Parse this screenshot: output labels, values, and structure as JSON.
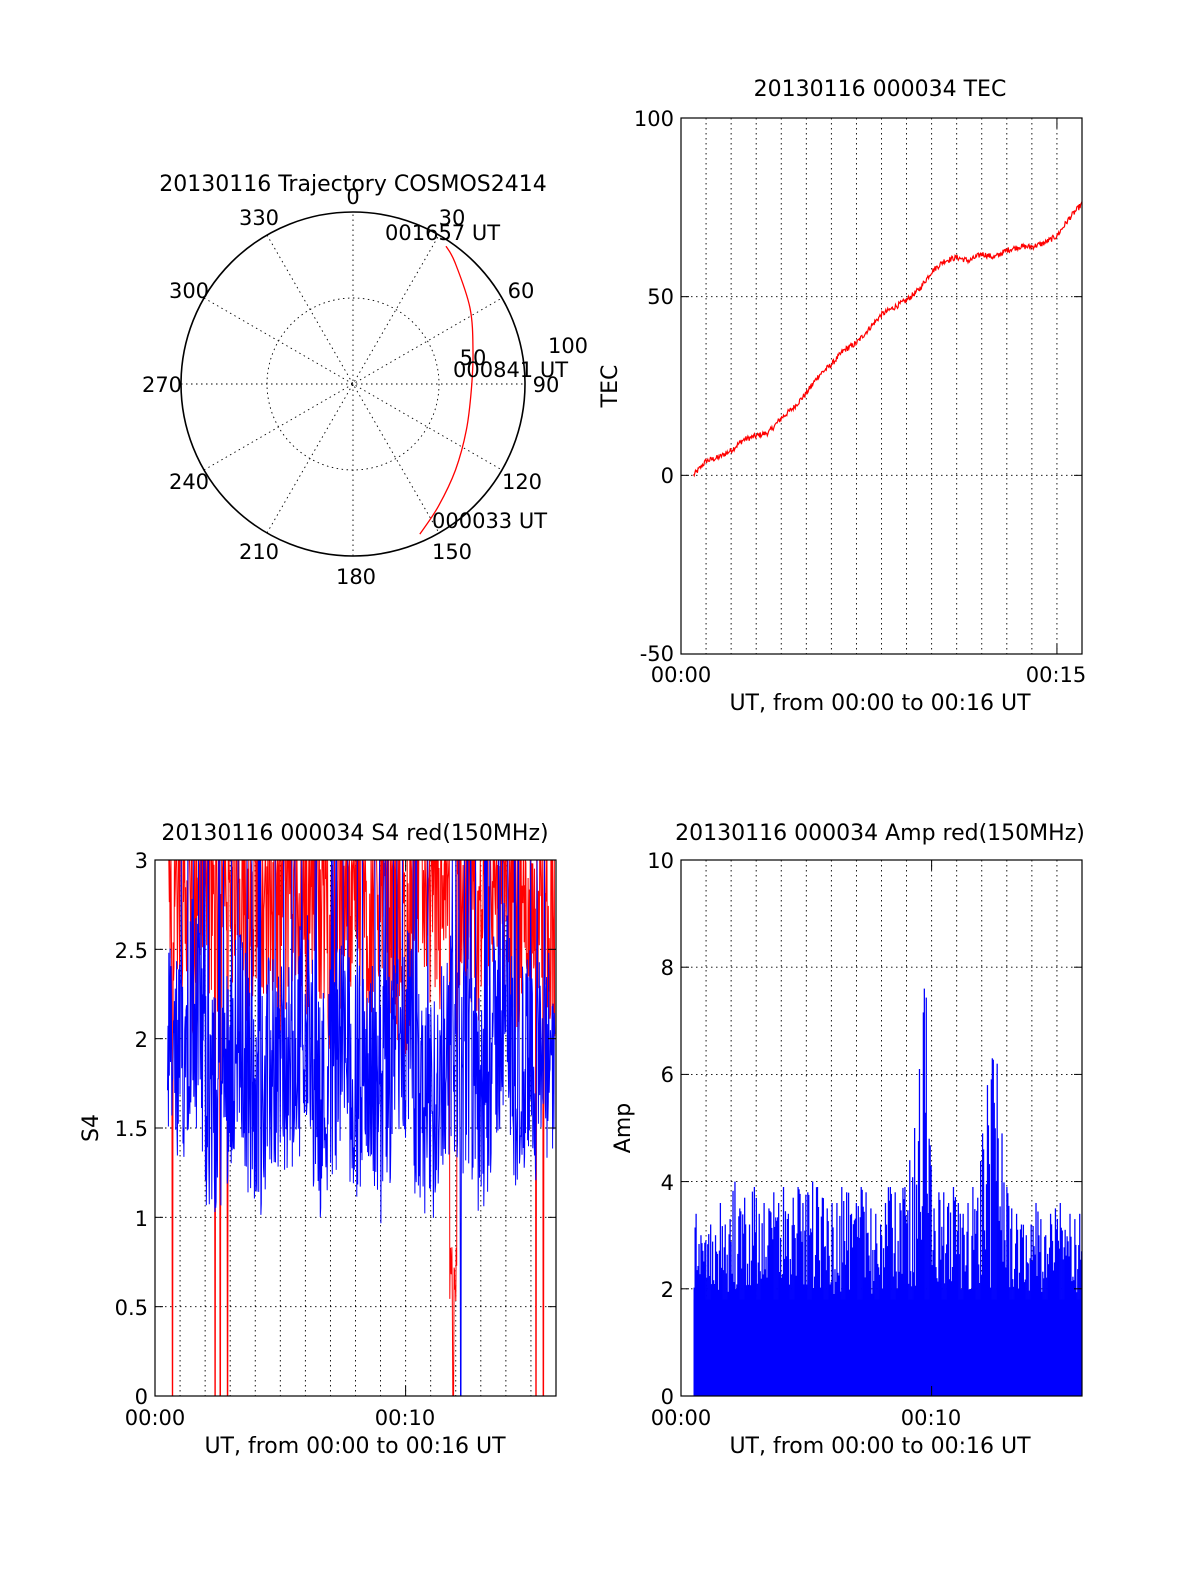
{
  "chart_data": [
    {
      "type": "polar",
      "title": "20130116 Trajectory COSMOS2414",
      "azimuth_labels": [
        "0",
        "30",
        "60",
        "90",
        "120",
        "150",
        "180",
        "210",
        "240",
        "270",
        "300",
        "330"
      ],
      "radial_labels": [
        "50",
        "100"
      ],
      "track_labels": {
        "end": "001657 UT",
        "middle": "000841 UT",
        "start": "000033 UT"
      },
      "series": [
        {
          "color": "#ff0000",
          "points": [
            {
              "az": 156,
              "el": 4
            },
            {
              "az": 145,
              "el": 12
            },
            {
              "az": 130,
              "el": 20
            },
            {
              "az": 112,
              "el": 26
            },
            {
              "az": 93,
              "el": 28
            },
            {
              "az": 75,
              "el": 25
            },
            {
              "az": 57,
              "el": 17
            },
            {
              "az": 40,
              "el": 7
            },
            {
              "az": 34,
              "el": 3
            }
          ]
        }
      ],
      "grid": true
    },
    {
      "type": "line",
      "title": "20130116 000034 TEC",
      "xlabel": "UT, from 00:00 to 00:16 UT",
      "ylabel": "TEC",
      "x_tick_labels": [
        "00:00",
        "00:15"
      ],
      "y_tick_labels": [
        "-50",
        "0",
        "50",
        "100"
      ],
      "xlim_minutes": [
        0,
        16
      ],
      "ylim": [
        -50,
        100
      ],
      "grid": true,
      "series": [
        {
          "color": "#ff0000",
          "x_minutes": [
            0.5,
            1.0,
            1.5,
            2.0,
            2.5,
            3.0,
            3.5,
            4.0,
            4.5,
            5.0,
            5.5,
            6.0,
            6.5,
            7.0,
            7.5,
            8.0,
            8.5,
            9.0,
            9.5,
            10.0,
            10.5,
            11.0,
            11.5,
            12.0,
            12.5,
            13.0,
            13.5,
            14.0,
            14.5,
            15.0,
            15.5,
            16.0
          ],
          "values": [
            0,
            4,
            5,
            7,
            10,
            11,
            12,
            16,
            19,
            23,
            28,
            31,
            35,
            37,
            41,
            45,
            47,
            49,
            52,
            57,
            60,
            61,
            60,
            62,
            61,
            63,
            64,
            64,
            65,
            67,
            72,
            76
          ]
        }
      ]
    },
    {
      "type": "line",
      "title": "20130116 000034 S4 red(150MHz)",
      "xlabel": "UT, from 00:00 to 00:16 UT",
      "ylabel": "S4",
      "x_tick_labels": [
        "00:00",
        "00:10"
      ],
      "y_tick_labels": [
        "0",
        "0.5",
        "1",
        "1.5",
        "2",
        "2.5",
        "3"
      ],
      "xlim_minutes": [
        0,
        16
      ],
      "ylim": [
        0,
        3
      ],
      "grid": true,
      "series": [
        {
          "color": "#ff0000",
          "values": [
            2.9,
            3.0,
            2.7,
            3.0,
            2.8,
            3.0,
            2.6,
            3.0,
            2.9,
            2.7,
            3.0,
            2.8,
            3.0,
            2.6,
            2.9,
            3.0,
            2.7,
            3.0,
            2.8,
            2.5,
            3.0,
            2.9,
            2.7,
            3.0,
            2.8,
            2.6,
            3.0,
            2.9,
            2.7,
            2.8,
            3.0,
            2.6
          ],
          "dropouts_minutes": [
            0.7,
            2.4,
            2.6,
            2.9,
            11.9,
            15.2,
            15.5
          ],
          "dip_minutes": 11.9,
          "dip_min": 0.45
        },
        {
          "color": "#0000ff",
          "values": [
            1.9,
            1.8,
            2.3,
            1.7,
            1.6,
            1.9,
            2.0,
            1.5,
            1.8,
            1.9,
            1.7,
            2.2,
            1.6,
            1.8,
            2.0,
            1.7,
            1.9,
            1.6,
            1.8,
            2.1,
            1.7,
            1.5,
            1.9,
            2.0,
            1.8,
            1.6,
            1.9,
            2.2,
            1.7,
            1.9,
            1.8,
            2.0
          ],
          "dropouts_minutes": [
            12.2
          ]
        }
      ]
    },
    {
      "type": "bar",
      "title": "20130116 000034 Amp red(150MHz)",
      "xlabel": "UT, from 00:00 to 00:16 UT",
      "ylabel": "Amp",
      "x_tick_labels": [
        "00:00",
        "00:10"
      ],
      "y_tick_labels": [
        "0",
        "2",
        "4",
        "6",
        "8",
        "10"
      ],
      "xlim_minutes": [
        0,
        16
      ],
      "ylim": [
        0,
        10
      ],
      "grid": true,
      "series": [
        {
          "color": "#0000ff",
          "x_start_minutes": 0.5,
          "x_end_minutes": 16,
          "values": [
            3.4,
            3.0,
            2.9,
            3.2,
            3.0,
            3.6,
            3.2,
            3.3,
            4.0,
            3.5,
            3.7,
            3.2,
            3.9,
            3.4,
            3.6,
            3.5,
            3.8,
            3.6,
            3.9,
            3.4,
            3.7,
            3.9,
            3.6,
            3.8,
            4.0,
            3.9,
            3.7,
            3.5,
            3.6,
            3.6,
            3.9,
            3.8,
            3.4,
            3.6,
            3.9,
            3.8,
            3.5,
            3.4,
            3.2,
            3.6,
            3.9,
            3.8,
            3.6,
            3.9,
            4.4,
            5.0,
            6.1,
            7.6,
            4.8,
            3.5,
            3.8,
            3.8,
            3.6,
            3.9,
            3.6,
            3.4,
            3.6,
            3.9,
            3.7,
            4.9,
            5.8,
            6.3,
            6.2,
            4.9,
            3.9,
            3.5,
            3.4,
            3.2,
            3.0,
            3.2,
            3.6,
            3.3,
            3.0,
            3.4,
            3.5,
            3.6,
            3.1,
            3.4,
            3.3,
            3.4
          ]
        }
      ]
    }
  ]
}
